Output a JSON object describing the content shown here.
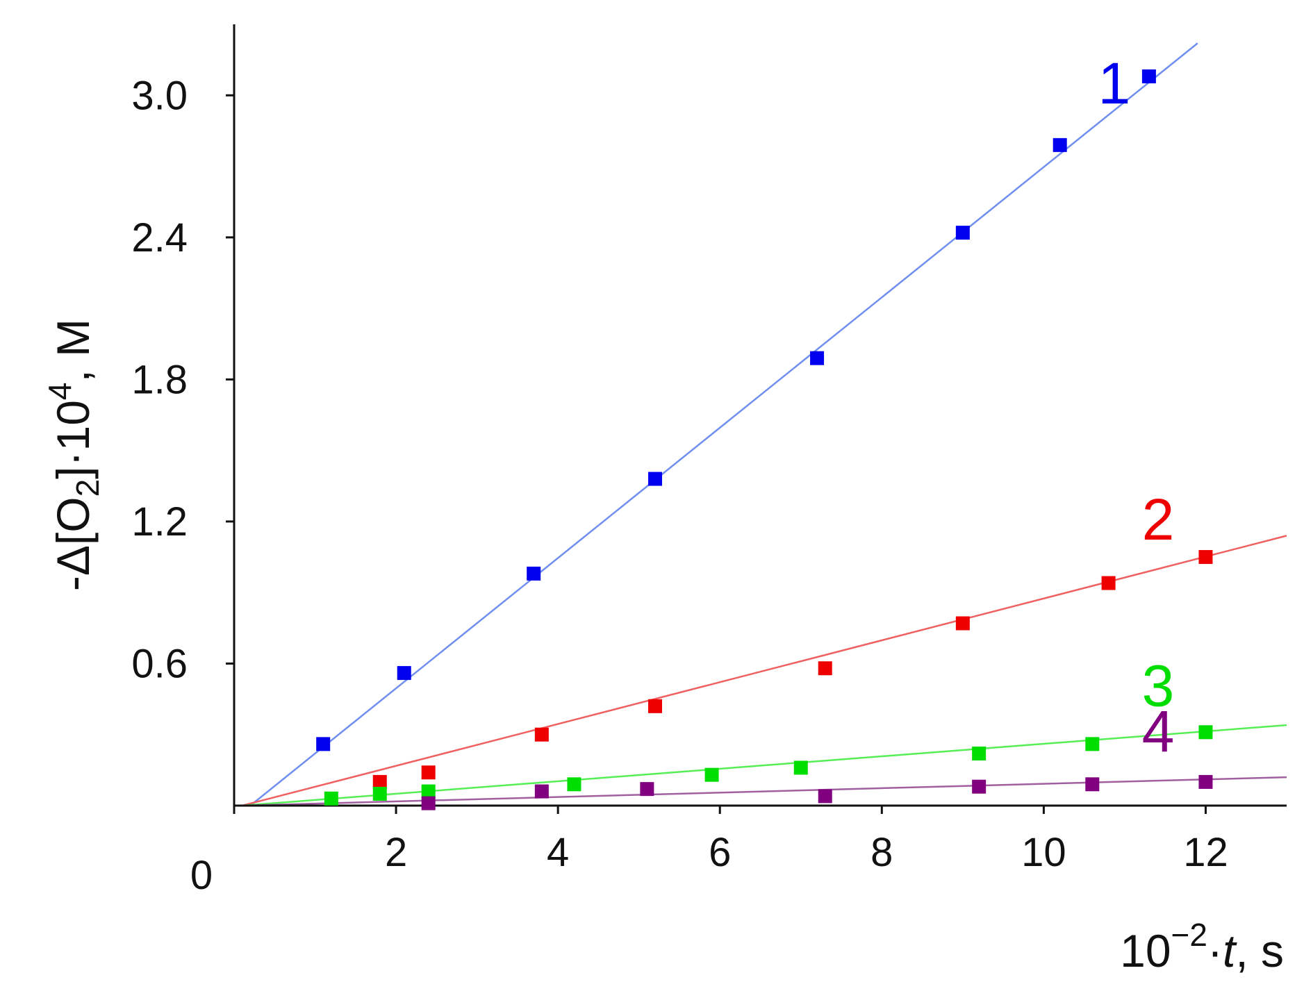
{
  "chart_data": {
    "type": "scatter",
    "title": "",
    "xlabel": "10⁻²·t, s",
    "ylabel": "-Δ[O₂]·10⁴, M",
    "xlabel_parts": {
      "base": "10",
      "exponent": "−2",
      "dot": "·",
      "variable": "t",
      "unit": ", s"
    },
    "ylabel_parts": {
      "prefix": "-Δ[O",
      "subscript": "2",
      "middle": "]·10",
      "superscript": "4",
      "unit": ", M"
    },
    "xlim": [
      0,
      13
    ],
    "ylim": [
      0,
      3.3
    ],
    "x_ticks": [
      2,
      4,
      6,
      8,
      10,
      12
    ],
    "x_tick_labels": [
      "2",
      "4",
      "6",
      "8",
      "10",
      "12"
    ],
    "y_ticks": [
      0.6,
      1.2,
      1.8,
      2.4,
      3.0
    ],
    "y_tick_labels": [
      "0.6",
      "1.2",
      "1.8",
      "2.4",
      "3.0"
    ],
    "origin_label": "0",
    "grid": false,
    "legend": "none",
    "series": [
      {
        "label": "1",
        "color": "#0000ee",
        "line_color": "#6f8ef0",
        "fit": {
          "x": [
            0.2,
            11.9
          ],
          "y": [
            0.0,
            3.22
          ]
        },
        "points": [
          {
            "x": 1.1,
            "y": 0.26
          },
          {
            "x": 2.1,
            "y": 0.56
          },
          {
            "x": 3.7,
            "y": 0.98
          },
          {
            "x": 5.2,
            "y": 1.38
          },
          {
            "x": 7.2,
            "y": 1.89
          },
          {
            "x": 9.0,
            "y": 2.42
          },
          {
            "x": 10.2,
            "y": 2.79
          },
          {
            "x": 11.3,
            "y": 3.08
          }
        ]
      },
      {
        "label": "2",
        "color": "#ee0000",
        "line_color": "#f06060",
        "fit": {
          "x": [
            0.1,
            13.0
          ],
          "y": [
            0.0,
            1.14
          ]
        },
        "points": [
          {
            "x": 1.8,
            "y": 0.1
          },
          {
            "x": 2.4,
            "y": 0.14
          },
          {
            "x": 3.8,
            "y": 0.3
          },
          {
            "x": 5.2,
            "y": 0.42
          },
          {
            "x": 7.3,
            "y": 0.58
          },
          {
            "x": 9.0,
            "y": 0.77
          },
          {
            "x": 10.8,
            "y": 0.94
          },
          {
            "x": 12.0,
            "y": 1.05
          }
        ]
      },
      {
        "label": "3",
        "color": "#00dd00",
        "line_color": "#55ee55",
        "fit": {
          "x": [
            0.1,
            13.0
          ],
          "y": [
            0.0,
            0.34
          ]
        },
        "points": [
          {
            "x": 1.2,
            "y": 0.03
          },
          {
            "x": 1.8,
            "y": 0.05
          },
          {
            "x": 2.4,
            "y": 0.06
          },
          {
            "x": 4.2,
            "y": 0.09
          },
          {
            "x": 5.9,
            "y": 0.13
          },
          {
            "x": 7.0,
            "y": 0.16
          },
          {
            "x": 9.2,
            "y": 0.22
          },
          {
            "x": 10.6,
            "y": 0.26
          },
          {
            "x": 12.0,
            "y": 0.31
          }
        ]
      },
      {
        "label": "4",
        "color": "#800080",
        "line_color": "#a060a0",
        "fit": {
          "x": [
            0.1,
            13.0
          ],
          "y": [
            0.0,
            0.12
          ]
        },
        "points": [
          {
            "x": 2.4,
            "y": 0.01
          },
          {
            "x": 3.8,
            "y": 0.06
          },
          {
            "x": 5.1,
            "y": 0.07
          },
          {
            "x": 7.3,
            "y": 0.04
          },
          {
            "x": 9.2,
            "y": 0.08
          },
          {
            "x": 10.6,
            "y": 0.09
          },
          {
            "x": 12.0,
            "y": 0.1
          }
        ]
      }
    ]
  }
}
